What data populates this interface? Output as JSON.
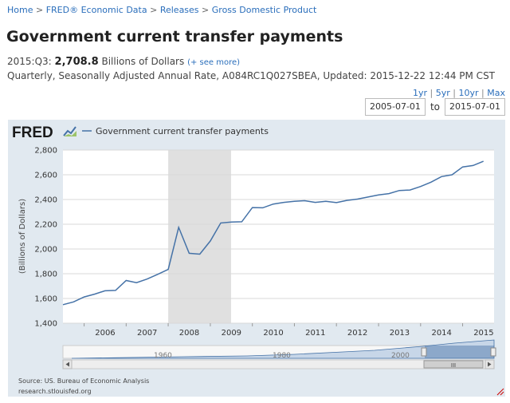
{
  "breadcrumb": {
    "items": [
      "Home",
      "FRED® Economic Data",
      "Releases",
      "Gross Domestic Product"
    ],
    "separator": ">"
  },
  "page_title": "Government current transfer payments",
  "observation": {
    "period": "2015:Q3:",
    "value": "2,708.8",
    "units": "Billions of Dollars",
    "see_more": "(+ see more)"
  },
  "meta_line": "Quarterly, Seasonally Adjusted Annual Rate, A084RC1Q027SBEA, Updated: 2015-12-22 12:44 PM CST",
  "range_links": [
    "1yr",
    "5yr",
    "10yr",
    "Max"
  ],
  "range_sep": "|",
  "date_range": {
    "start": "2005-07-01",
    "to_label": "to",
    "end": "2015-07-01"
  },
  "chart": {
    "logo_text": "FRED",
    "source": "Source: US. Bureau of Economic Analysis",
    "site": "research.stlouisfed.org",
    "navigator_labels": [
      "1960",
      "1980",
      "2000"
    ],
    "scroll_grip": "III"
  },
  "colors": {
    "line": "#4572a7",
    "recession": "#e0e0e0",
    "panel": "#e1e9f0",
    "link": "#2a6ebb"
  },
  "chart_data": {
    "type": "line",
    "title": "",
    "xlabel": "",
    "ylabel": "(Billions of Dollars)",
    "ylim": [
      1400,
      2800
    ],
    "yticks": [
      1400,
      1600,
      1800,
      2000,
      2200,
      2400,
      2600,
      2800
    ],
    "ytick_labels": [
      "1,400",
      "1,600",
      "1,800",
      "2,000",
      "2,200",
      "2,400",
      "2,600",
      "2,800"
    ],
    "xlim": [
      "2005-07-01",
      "2015-10-01"
    ],
    "xtick_labels": [
      "2006",
      "2007",
      "2008",
      "2009",
      "2010",
      "2011",
      "2012",
      "2013",
      "2014",
      "2015"
    ],
    "grid": true,
    "legend": "top",
    "recession": {
      "start": "2008-01-01",
      "end": "2009-06-30"
    },
    "series": [
      {
        "name": "Government current transfer payments",
        "x": [
          "2005-07-01",
          "2005-10-01",
          "2006-01-01",
          "2006-04-01",
          "2006-07-01",
          "2006-10-01",
          "2007-01-01",
          "2007-04-01",
          "2007-07-01",
          "2007-10-01",
          "2008-01-01",
          "2008-04-01",
          "2008-07-01",
          "2008-10-01",
          "2009-01-01",
          "2009-04-01",
          "2009-07-01",
          "2009-10-01",
          "2010-01-01",
          "2010-04-01",
          "2010-07-01",
          "2010-10-01",
          "2011-01-01",
          "2011-04-01",
          "2011-07-01",
          "2011-10-01",
          "2012-01-01",
          "2012-04-01",
          "2012-07-01",
          "2012-10-01",
          "2013-01-01",
          "2013-04-01",
          "2013-07-01",
          "2013-10-01",
          "2014-01-01",
          "2014-04-01",
          "2014-07-01",
          "2014-10-01",
          "2015-01-01",
          "2015-04-01",
          "2015-07-01"
        ],
        "values": [
          1550,
          1572,
          1612,
          1635,
          1662,
          1665,
          1745,
          1728,
          1757,
          1795,
          1835,
          2175,
          1965,
          1958,
          2065,
          2210,
          2218,
          2220,
          2335,
          2333,
          2363,
          2377,
          2385,
          2390,
          2377,
          2385,
          2375,
          2393,
          2403,
          2420,
          2437,
          2448,
          2473,
          2477,
          2505,
          2540,
          2585,
          2600,
          2663,
          2675,
          2708.8
        ]
      }
    ]
  }
}
